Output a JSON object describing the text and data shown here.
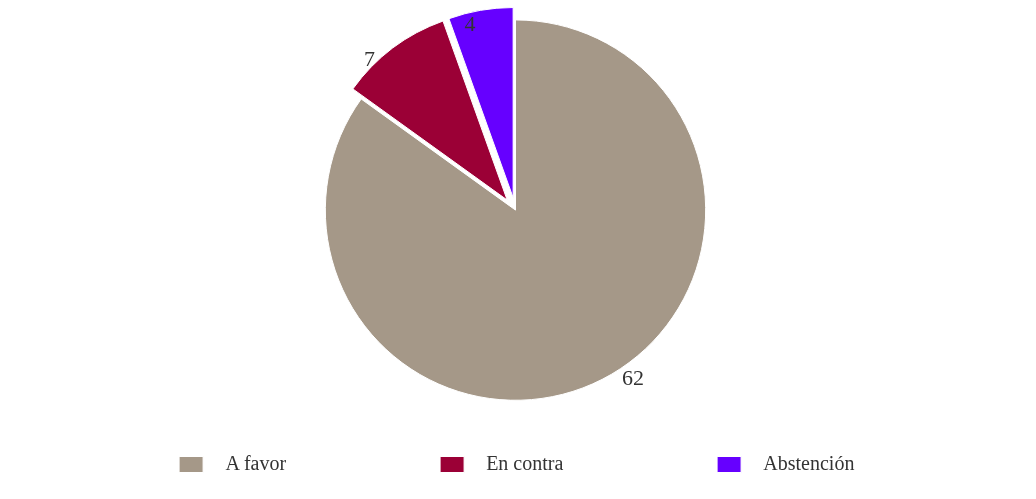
{
  "chart_data": {
    "type": "pie",
    "categories": [
      "A favor",
      "En contra",
      "Abstención"
    ],
    "values": [
      62,
      7,
      4
    ],
    "colors": [
      "#a59888",
      "#9b0036",
      "#6600ff"
    ],
    "data_labels": true,
    "legend": "bottom"
  }
}
